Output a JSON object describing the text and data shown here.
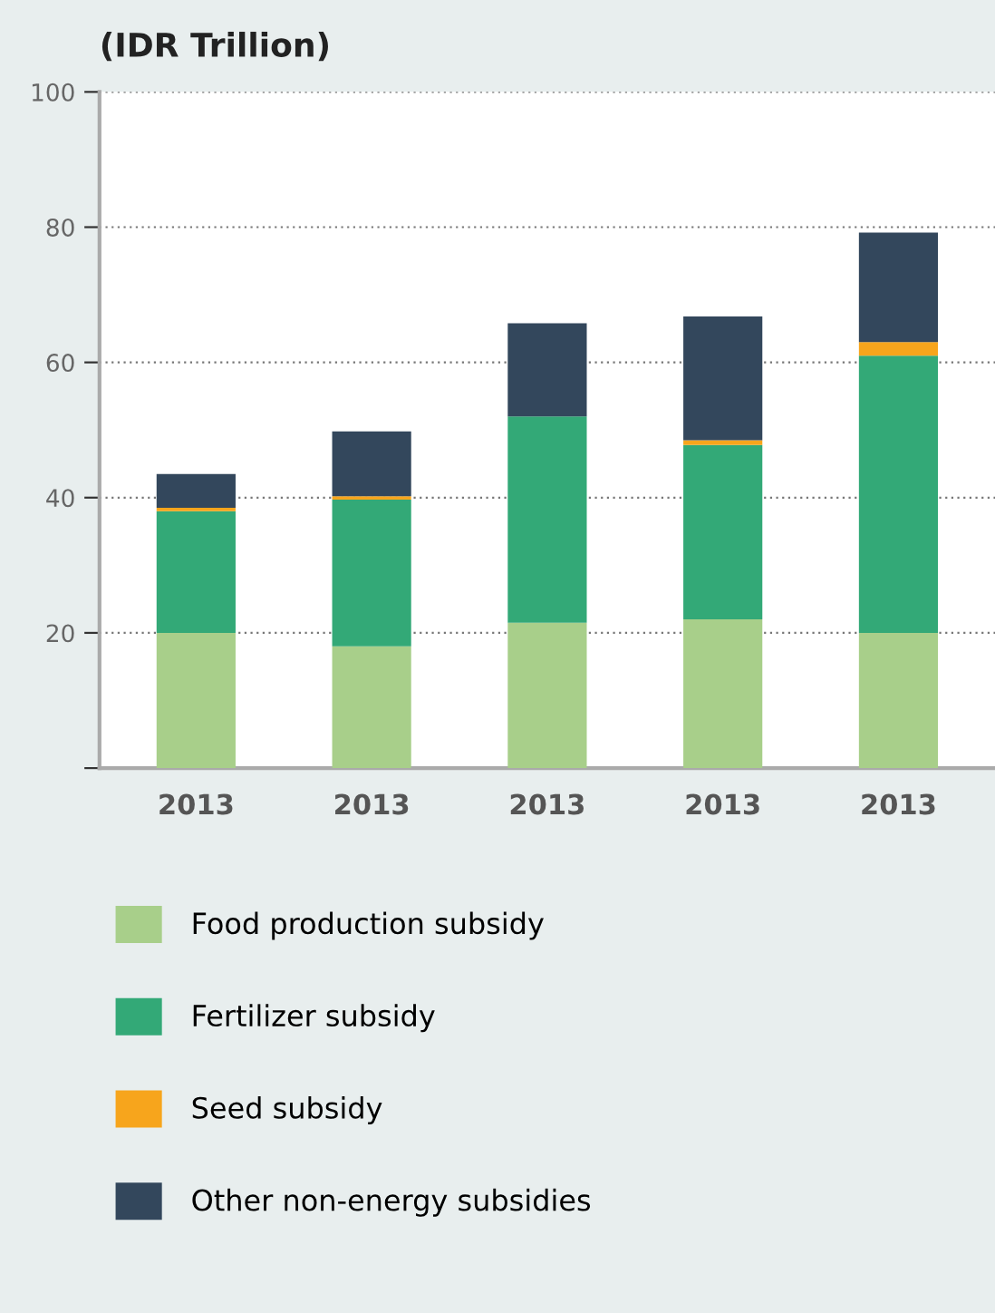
{
  "chart_data": {
    "type": "bar",
    "stacked": true,
    "title": "(IDR Trillion)",
    "categories": [
      "2013",
      "2013",
      "2013",
      "2013",
      "2013"
    ],
    "series": [
      {
        "name": "Food production subsidy",
        "color": "#a8cf8a",
        "values": [
          20,
          18,
          21.5,
          22,
          20
        ]
      },
      {
        "name": "Fertilizer subsidy",
        "color": "#33a977",
        "values": [
          18,
          21.7,
          30.5,
          25.8,
          41
        ]
      },
      {
        "name": "Seed subsidy",
        "color": "#f7a51c",
        "values": [
          0.5,
          0.5,
          0,
          0.7,
          2
        ]
      },
      {
        "name": "Other non-energy subsidies",
        "color": "#33475c",
        "values": [
          5,
          9.6,
          13.8,
          18.3,
          16.2
        ]
      }
    ],
    "ylim": [
      0,
      100
    ],
    "yticks": [
      {
        "value": 0,
        "label": null
      },
      20,
      40,
      60,
      80,
      100
    ],
    "grid": "y",
    "legend": "bottom"
  }
}
